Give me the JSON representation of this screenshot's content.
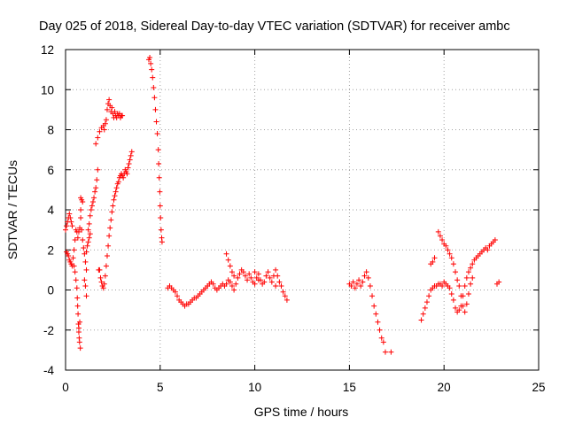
{
  "chart_data": {
    "type": "scatter",
    "title": "Day 025 of 2018, Sidereal Day-to-day VTEC variation (SDTVAR) for receiver ambc",
    "xlabel": "GPS time / hours",
    "ylabel": "SDTVAR / TECUs",
    "xlim": [
      0,
      25
    ],
    "ylim": [
      -4,
      12
    ],
    "xticks": [
      "0",
      "5",
      "10",
      "15",
      "20",
      "25"
    ],
    "yticks": [
      "-4",
      "-2",
      "0",
      "2",
      "4",
      "6",
      "8",
      "10",
      "12"
    ],
    "grid": true,
    "marker": "+",
    "color": "#ff0000",
    "series": [
      {
        "name": "SDTVAR",
        "points": [
          [
            0.0,
            3.0
          ],
          [
            0.05,
            3.2
          ],
          [
            0.1,
            3.4
          ],
          [
            0.15,
            3.6
          ],
          [
            0.2,
            3.8
          ],
          [
            0.25,
            3.6
          ],
          [
            0.3,
            3.4
          ],
          [
            0.35,
            3.2
          ],
          [
            0.05,
            1.9
          ],
          [
            0.1,
            1.8
          ],
          [
            0.15,
            1.7
          ],
          [
            0.2,
            1.5
          ],
          [
            0.25,
            1.4
          ],
          [
            0.3,
            1.3
          ],
          [
            0.35,
            1.2
          ],
          [
            0.4,
            1.6
          ],
          [
            0.45,
            2.0
          ],
          [
            0.5,
            2.5
          ],
          [
            0.55,
            3.0
          ],
          [
            0.6,
            2.9
          ],
          [
            0.65,
            2.6
          ],
          [
            0.7,
            2.9
          ],
          [
            0.75,
            3.1
          ],
          [
            0.45,
            1.2
          ],
          [
            0.5,
            0.9
          ],
          [
            0.55,
            0.5
          ],
          [
            0.6,
            0.1
          ],
          [
            0.62,
            -0.4
          ],
          [
            0.64,
            -0.8
          ],
          [
            0.66,
            -1.2
          ],
          [
            0.68,
            -1.7
          ],
          [
            0.7,
            -2.1
          ],
          [
            0.72,
            -2.4
          ],
          [
            0.74,
            -2.6
          ],
          [
            0.78,
            -2.9
          ],
          [
            0.7,
            -1.9
          ],
          [
            0.75,
            -1.6
          ],
          [
            0.8,
            4.6
          ],
          [
            0.85,
            4.5
          ],
          [
            0.9,
            4.4
          ],
          [
            0.8,
            4.0
          ],
          [
            0.8,
            3.6
          ],
          [
            0.85,
            3.0
          ],
          [
            0.9,
            2.5
          ],
          [
            0.95,
            2.1
          ],
          [
            1.0,
            1.8
          ],
          [
            1.05,
            1.4
          ],
          [
            1.1,
            1.0
          ],
          [
            1.1,
            1.9
          ],
          [
            1.15,
            2.2
          ],
          [
            1.2,
            2.4
          ],
          [
            1.25,
            2.6
          ],
          [
            1.3,
            2.8
          ],
          [
            1.2,
            3.0
          ],
          [
            1.25,
            3.3
          ],
          [
            1.3,
            3.7
          ],
          [
            1.35,
            4.0
          ],
          [
            1.4,
            4.2
          ],
          [
            1.45,
            4.4
          ],
          [
            1.5,
            4.6
          ],
          [
            1.55,
            4.9
          ],
          [
            1.6,
            5.1
          ],
          [
            1.65,
            5.5
          ],
          [
            1.7,
            6.0
          ],
          [
            1.0,
            0.5
          ],
          [
            1.05,
            0.2
          ],
          [
            1.1,
            -0.3
          ],
          [
            1.6,
            7.3
          ],
          [
            1.7,
            7.6
          ],
          [
            1.8,
            7.9
          ],
          [
            1.9,
            8.1
          ],
          [
            2.0,
            8.2
          ],
          [
            2.05,
            8.0
          ],
          [
            2.1,
            8.3
          ],
          [
            2.15,
            8.5
          ],
          [
            2.2,
            9.0
          ],
          [
            2.25,
            9.3
          ],
          [
            2.3,
            9.5
          ],
          [
            2.35,
            9.2
          ],
          [
            2.4,
            8.9
          ],
          [
            2.45,
            9.1
          ],
          [
            2.5,
            8.8
          ],
          [
            2.55,
            8.6
          ],
          [
            2.6,
            8.9
          ],
          [
            2.65,
            8.7
          ],
          [
            2.7,
            8.6
          ],
          [
            2.75,
            8.8
          ],
          [
            2.8,
            8.7
          ],
          [
            2.85,
            8.8
          ],
          [
            2.9,
            8.6
          ],
          [
            2.95,
            8.7
          ],
          [
            3.0,
            8.7
          ],
          [
            1.75,
            1.0
          ],
          [
            1.8,
            1.0
          ],
          [
            1.85,
            0.6
          ],
          [
            1.9,
            0.4
          ],
          [
            1.95,
            0.2
          ],
          [
            2.0,
            0.1
          ],
          [
            2.05,
            0.3
          ],
          [
            2.1,
            0.7
          ],
          [
            2.15,
            1.2
          ],
          [
            2.2,
            1.7
          ],
          [
            2.25,
            2.2
          ],
          [
            2.3,
            2.7
          ],
          [
            2.35,
            3.1
          ],
          [
            2.4,
            3.5
          ],
          [
            2.45,
            3.9
          ],
          [
            2.5,
            4.2
          ],
          [
            2.55,
            4.5
          ],
          [
            2.6,
            4.7
          ],
          [
            2.65,
            4.9
          ],
          [
            2.7,
            5.1
          ],
          [
            2.75,
            5.3
          ],
          [
            2.8,
            5.4
          ],
          [
            2.85,
            5.6
          ],
          [
            2.9,
            5.7
          ],
          [
            2.95,
            5.8
          ],
          [
            3.0,
            5.7
          ],
          [
            3.05,
            5.6
          ],
          [
            3.1,
            5.8
          ],
          [
            3.15,
            6.0
          ],
          [
            3.2,
            5.9
          ],
          [
            3.25,
            5.8
          ],
          [
            3.3,
            6.1
          ],
          [
            3.35,
            6.3
          ],
          [
            3.4,
            6.5
          ],
          [
            3.45,
            6.7
          ],
          [
            3.5,
            6.9
          ],
          [
            4.4,
            11.5
          ],
          [
            4.45,
            11.6
          ],
          [
            4.5,
            11.3
          ],
          [
            4.55,
            11.0
          ],
          [
            4.6,
            10.6
          ],
          [
            4.65,
            10.1
          ],
          [
            4.7,
            9.6
          ],
          [
            4.75,
            9.0
          ],
          [
            4.8,
            8.4
          ],
          [
            4.85,
            7.8
          ],
          [
            4.9,
            7.0
          ],
          [
            4.92,
            6.3
          ],
          [
            4.95,
            5.6
          ],
          [
            4.98,
            4.9
          ],
          [
            5.0,
            4.2
          ],
          [
            5.02,
            3.6
          ],
          [
            5.05,
            3.0
          ],
          [
            5.08,
            2.6
          ],
          [
            5.1,
            2.4
          ],
          [
            5.4,
            0.1
          ],
          [
            5.5,
            0.2
          ],
          [
            5.6,
            0.1
          ],
          [
            5.7,
            0.0
          ],
          [
            5.8,
            -0.1
          ],
          [
            5.9,
            -0.3
          ],
          [
            6.0,
            -0.5
          ],
          [
            6.1,
            -0.6
          ],
          [
            6.2,
            -0.7
          ],
          [
            6.3,
            -0.8
          ],
          [
            6.4,
            -0.7
          ],
          [
            6.5,
            -0.7
          ],
          [
            6.6,
            -0.6
          ],
          [
            6.7,
            -0.5
          ],
          [
            6.8,
            -0.4
          ],
          [
            6.9,
            -0.4
          ],
          [
            7.0,
            -0.3
          ],
          [
            7.1,
            -0.2
          ],
          [
            7.2,
            -0.1
          ],
          [
            7.3,
            0.0
          ],
          [
            7.4,
            0.1
          ],
          [
            7.5,
            0.2
          ],
          [
            7.6,
            0.3
          ],
          [
            7.7,
            0.4
          ],
          [
            7.8,
            0.3
          ],
          [
            7.9,
            0.1
          ],
          [
            8.0,
            0.0
          ],
          [
            8.1,
            0.1
          ],
          [
            8.2,
            0.2
          ],
          [
            8.3,
            0.3
          ],
          [
            8.4,
            0.2
          ],
          [
            8.5,
            0.3
          ],
          [
            8.6,
            0.5
          ],
          [
            8.7,
            0.4
          ],
          [
            8.8,
            0.2
          ],
          [
            8.9,
            0.0
          ],
          [
            9.0,
            0.3
          ],
          [
            9.1,
            0.6
          ],
          [
            9.2,
            0.8
          ],
          [
            9.3,
            1.0
          ],
          [
            9.4,
            0.9
          ],
          [
            9.5,
            0.7
          ],
          [
            9.6,
            0.5
          ],
          [
            9.7,
            0.8
          ],
          [
            9.8,
            0.6
          ],
          [
            9.9,
            0.4
          ],
          [
            10.0,
            0.3
          ],
          [
            10.1,
            0.6
          ],
          [
            10.2,
            0.8
          ],
          [
            10.3,
            0.5
          ],
          [
            10.4,
            0.3
          ],
          [
            10.5,
            0.4
          ],
          [
            10.6,
            0.7
          ],
          [
            10.7,
            0.9
          ],
          [
            10.8,
            0.6
          ],
          [
            10.9,
            0.4
          ],
          [
            11.0,
            0.7
          ],
          [
            11.1,
            1.0
          ],
          [
            11.2,
            0.7
          ],
          [
            11.3,
            0.4
          ],
          [
            11.4,
            0.2
          ],
          [
            11.5,
            -0.1
          ],
          [
            11.6,
            -0.3
          ],
          [
            11.7,
            -0.5
          ],
          [
            8.5,
            1.8
          ],
          [
            8.6,
            1.5
          ],
          [
            8.7,
            1.2
          ],
          [
            8.8,
            0.9
          ],
          [
            8.9,
            0.7
          ],
          [
            10.0,
            0.9
          ],
          [
            10.2,
            0.5
          ],
          [
            11.1,
            0.2
          ],
          [
            15.0,
            0.3
          ],
          [
            15.1,
            0.2
          ],
          [
            15.2,
            0.4
          ],
          [
            15.3,
            0.1
          ],
          [
            15.4,
            0.3
          ],
          [
            15.5,
            0.5
          ],
          [
            15.6,
            0.2
          ],
          [
            15.7,
            0.4
          ],
          [
            15.8,
            0.7
          ],
          [
            15.9,
            0.9
          ],
          [
            16.0,
            0.6
          ],
          [
            16.1,
            0.2
          ],
          [
            16.2,
            -0.3
          ],
          [
            16.3,
            -0.8
          ],
          [
            16.4,
            -1.2
          ],
          [
            16.5,
            -1.6
          ],
          [
            16.6,
            -2.0
          ],
          [
            16.7,
            -2.4
          ],
          [
            16.8,
            -2.6
          ],
          [
            16.9,
            -3.1
          ],
          [
            17.2,
            -3.1
          ],
          [
            18.8,
            -1.5
          ],
          [
            18.9,
            -1.2
          ],
          [
            19.0,
            -0.9
          ],
          [
            19.1,
            -0.6
          ],
          [
            19.2,
            -0.3
          ],
          [
            19.3,
            0.0
          ],
          [
            19.4,
            0.1
          ],
          [
            19.5,
            0.2
          ],
          [
            19.6,
            0.2
          ],
          [
            19.7,
            0.3
          ],
          [
            19.8,
            0.3
          ],
          [
            19.9,
            0.2
          ],
          [
            20.0,
            0.4
          ],
          [
            20.1,
            0.3
          ],
          [
            20.2,
            0.2
          ],
          [
            20.3,
            0.1
          ],
          [
            20.4,
            -0.2
          ],
          [
            20.5,
            -0.5
          ],
          [
            20.6,
            -0.9
          ],
          [
            20.7,
            -1.1
          ],
          [
            20.8,
            -1.0
          ],
          [
            20.9,
            -0.8
          ],
          [
            21.0,
            -0.3
          ],
          [
            21.1,
            0.2
          ],
          [
            21.2,
            0.6
          ],
          [
            21.3,
            0.9
          ],
          [
            21.4,
            1.1
          ],
          [
            21.5,
            1.3
          ],
          [
            21.6,
            1.5
          ],
          [
            21.7,
            1.6
          ],
          [
            21.8,
            1.7
          ],
          [
            21.9,
            1.8
          ],
          [
            22.0,
            1.9
          ],
          [
            22.1,
            2.0
          ],
          [
            22.2,
            2.1
          ],
          [
            22.3,
            2.0
          ],
          [
            22.4,
            2.2
          ],
          [
            22.5,
            2.3
          ],
          [
            22.6,
            2.4
          ],
          [
            22.7,
            2.5
          ],
          [
            22.8,
            0.3
          ],
          [
            22.9,
            0.4
          ],
          [
            19.3,
            1.3
          ],
          [
            19.4,
            1.4
          ],
          [
            19.5,
            1.6
          ],
          [
            19.7,
            2.9
          ],
          [
            19.8,
            2.7
          ],
          [
            19.9,
            2.5
          ],
          [
            20.0,
            2.3
          ],
          [
            20.1,
            2.2
          ],
          [
            20.2,
            2.0
          ],
          [
            20.3,
            1.8
          ],
          [
            20.4,
            1.6
          ],
          [
            20.5,
            1.3
          ],
          [
            20.6,
            0.9
          ],
          [
            20.7,
            0.5
          ],
          [
            20.8,
            0.2
          ],
          [
            20.9,
            -0.3
          ],
          [
            21.0,
            -0.8
          ],
          [
            21.1,
            -1.1
          ],
          [
            21.2,
            -0.7
          ],
          [
            21.3,
            -0.2
          ],
          [
            21.4,
            0.3
          ],
          [
            21.5,
            0.6
          ]
        ]
      }
    ]
  }
}
